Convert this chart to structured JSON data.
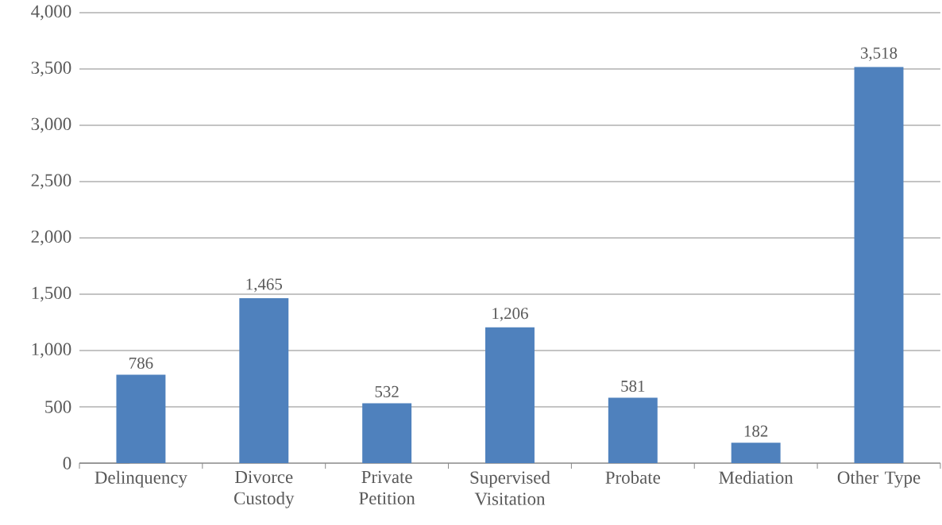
{
  "chart_data": {
    "type": "bar",
    "categories": [
      "Delinquency",
      "Divorce Custody",
      "Private Petition",
      "Supervised Visitation",
      "Probate",
      "Mediation",
      "Other Type"
    ],
    "values": [
      786,
      1465,
      532,
      1206,
      581,
      182,
      3518
    ],
    "color": "#4f81bd",
    "ylim": [
      0,
      4000
    ],
    "yticks": [
      0,
      500,
      {
        "value": 1000,
        "label": "1,000"
      },
      {
        "value": 1500,
        "label": "1,500"
      },
      {
        "value": 2000,
        "label": "2,000"
      },
      {
        "value": 2500,
        "label": "2,500"
      },
      {
        "value": 3000,
        "label": "3,000"
      },
      {
        "value": 3500,
        "label": "3,500"
      },
      {
        "value": 4000,
        "label": "4,000"
      }
    ],
    "grid": "y",
    "value_labels": [
      "786",
      "1,465",
      "532",
      "1,206",
      "581",
      "182",
      "3,518"
    ]
  }
}
